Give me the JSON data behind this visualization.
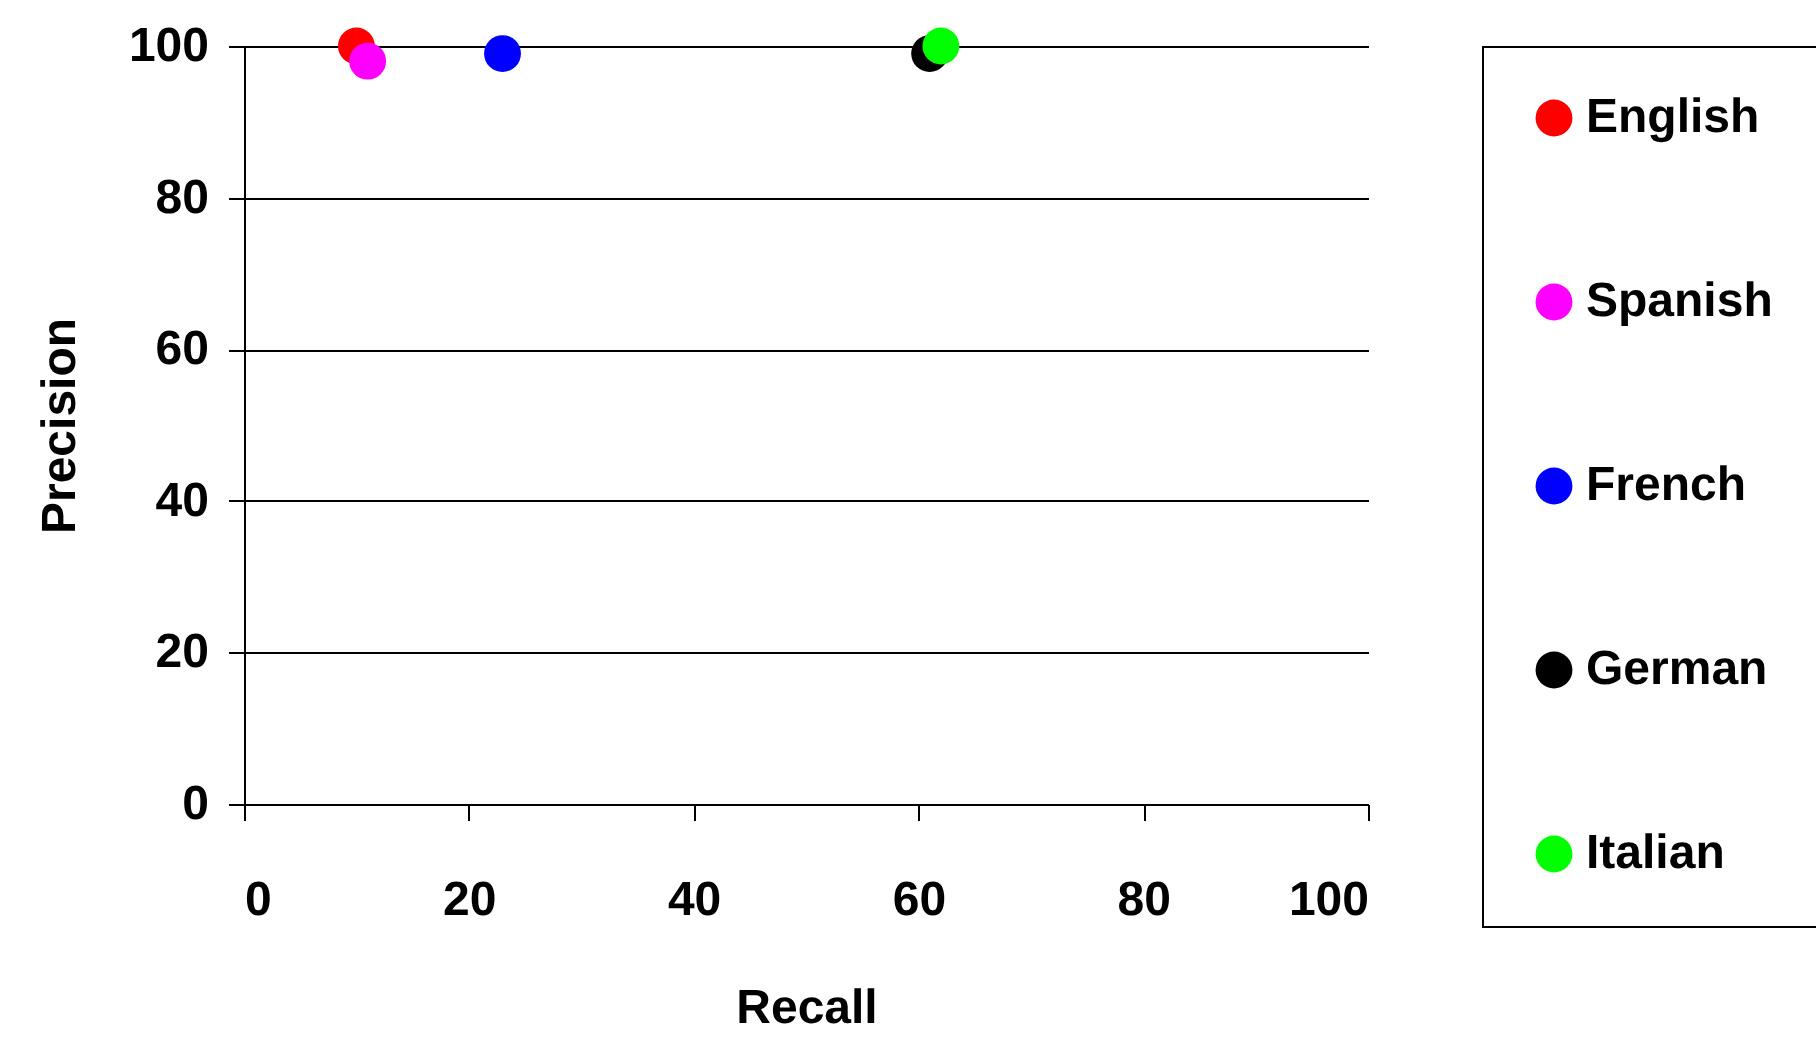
{
  "chart_data": {
    "type": "scatter",
    "xlabel": "Recall",
    "ylabel": "Precision",
    "xlim": [
      0,
      100
    ],
    "xticks": [
      0,
      20,
      40,
      60,
      80,
      100
    ],
    "ylim": [
      0,
      100
    ],
    "yticks": [
      0,
      20,
      40,
      60,
      80,
      100
    ],
    "grid": "y",
    "legend": "right",
    "marker": "circle",
    "series": [
      {
        "name": "English",
        "color": "#ff0000",
        "x": [
          10
        ],
        "values": [
          100
        ]
      },
      {
        "name": "Spanish",
        "color": "#ff00ff",
        "x": [
          11
        ],
        "values": [
          98
        ]
      },
      {
        "name": "French",
        "color": "#0000ff",
        "x": [
          23
        ],
        "values": [
          99
        ]
      },
      {
        "name": "German",
        "color": "#000000",
        "x": [
          61
        ],
        "values": [
          99
        ]
      },
      {
        "name": "Italian",
        "color": "#00ff00",
        "x": [
          62
        ],
        "values": [
          100
        ]
      }
    ]
  }
}
